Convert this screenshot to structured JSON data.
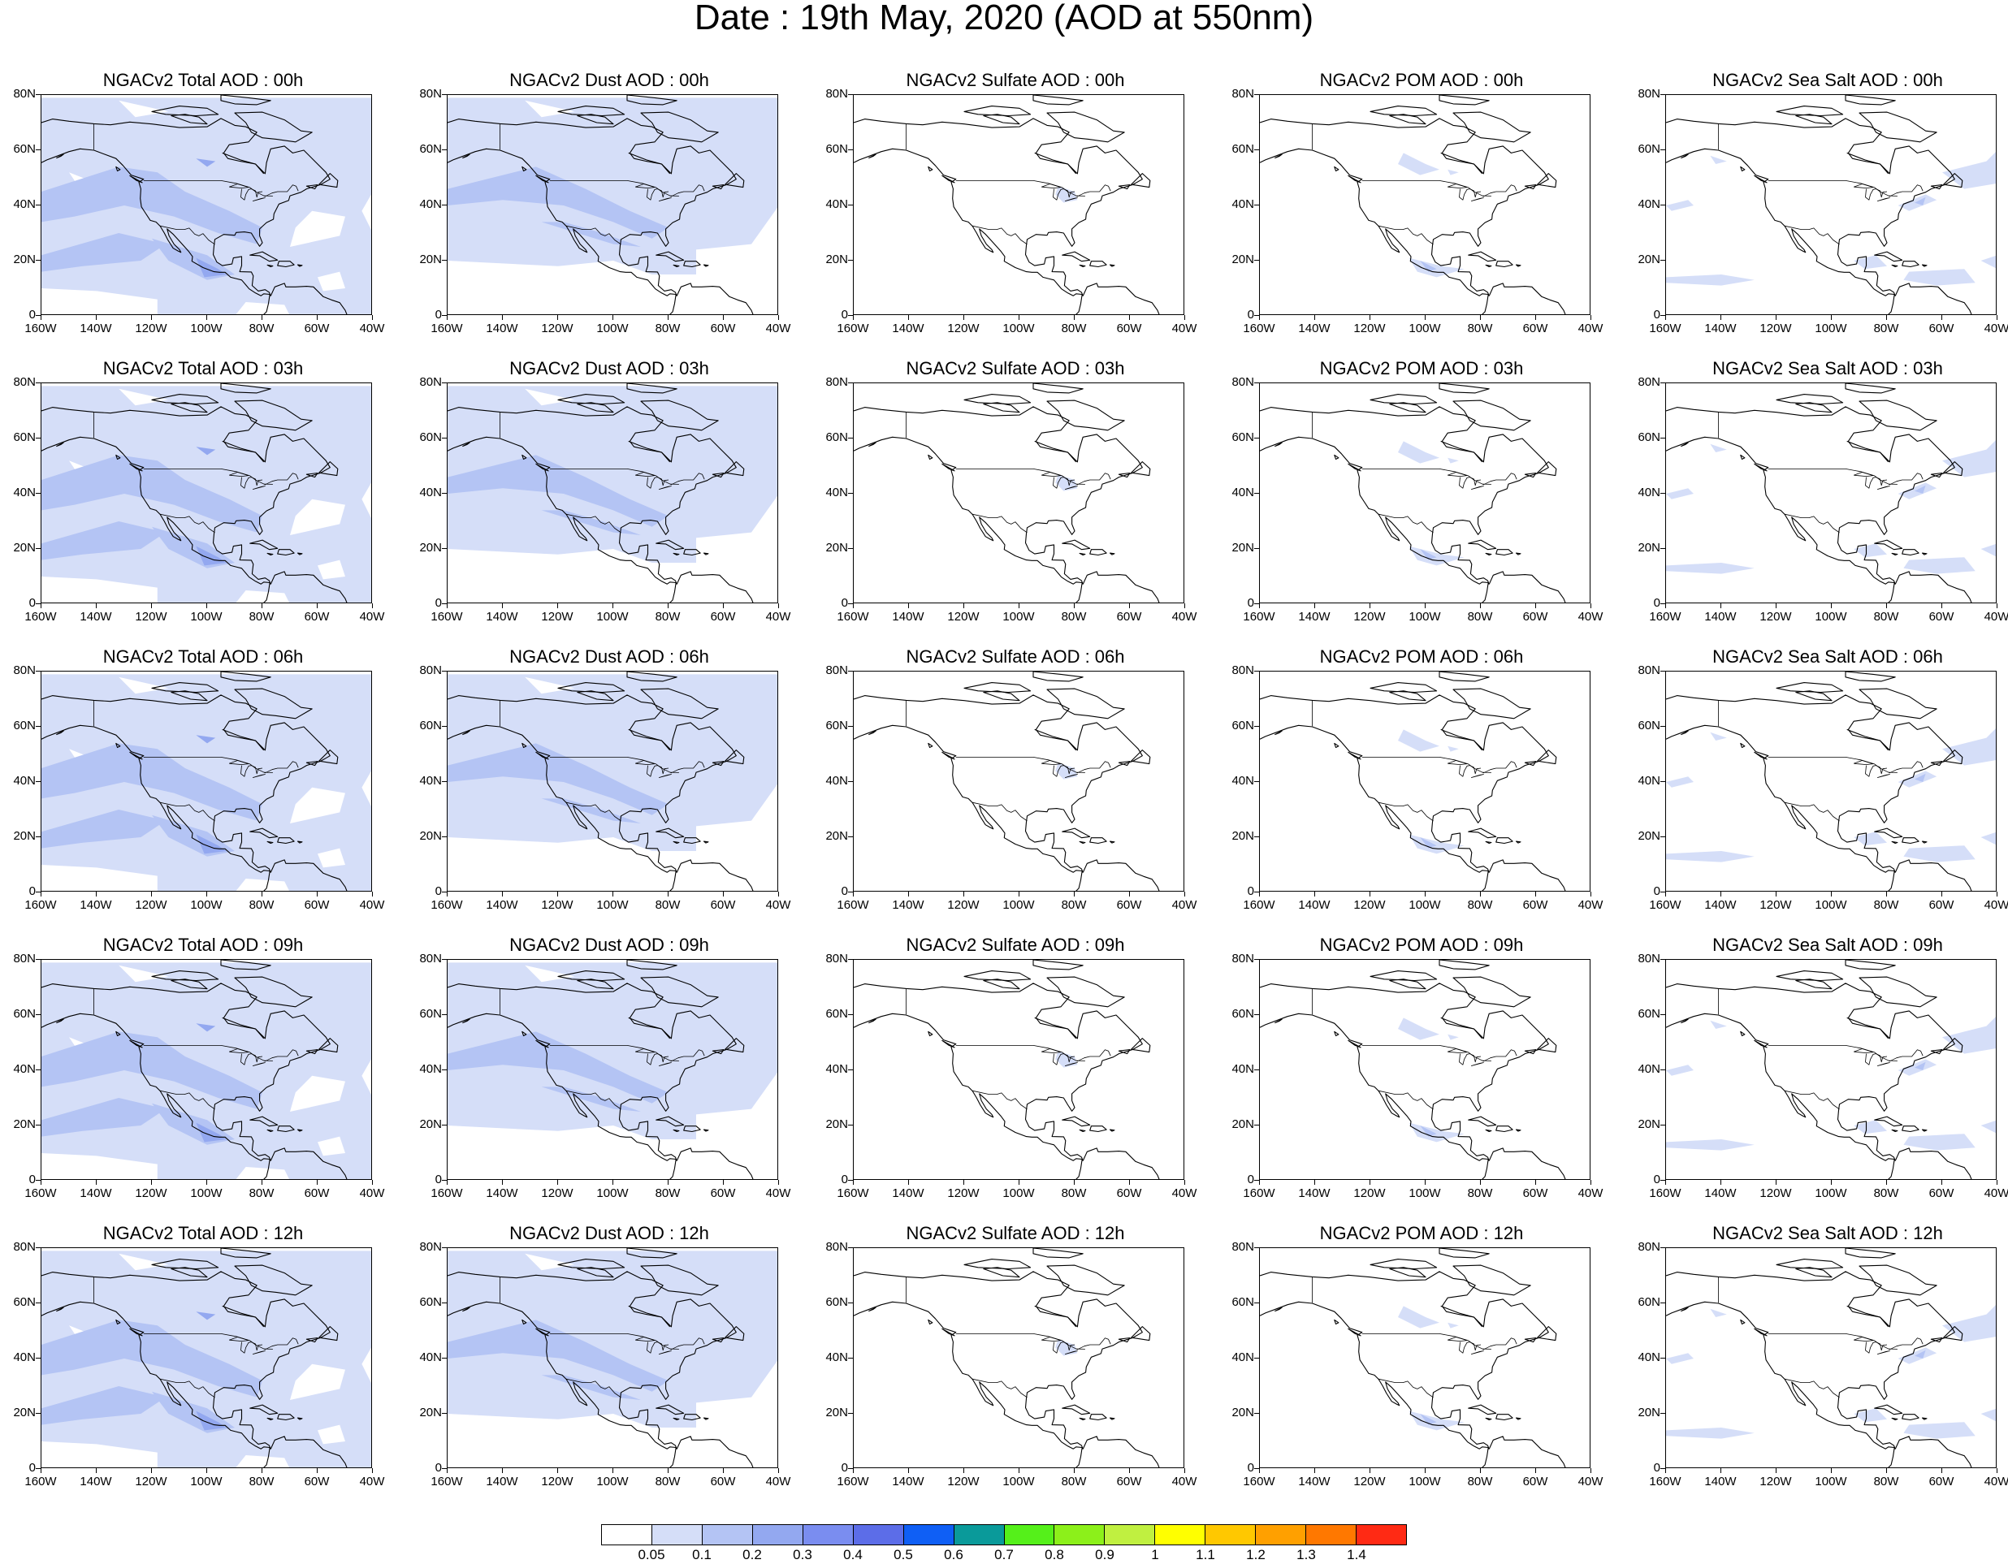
{
  "title": "Date : 19th May, 2020 (AOD at 550nm)",
  "panels": [
    [
      "NGACv2 Total AOD : 00h",
      "NGACv2 Dust AOD : 00h",
      "NGACv2 Sulfate AOD : 00h",
      "NGACv2 POM AOD : 00h",
      "NGACv2 Sea Salt AOD : 00h"
    ],
    [
      "NGACv2 Total AOD : 03h",
      "NGACv2 Dust AOD : 03h",
      "NGACv2 Sulfate AOD : 03h",
      "NGACv2 POM AOD : 03h",
      "NGACv2 Sea Salt AOD : 03h"
    ],
    [
      "NGACv2 Total AOD : 06h",
      "NGACv2 Dust AOD : 06h",
      "NGACv2 Sulfate AOD : 06h",
      "NGACv2 POM AOD : 06h",
      "NGACv2 Sea Salt AOD : 06h"
    ],
    [
      "NGACv2 Total AOD : 09h",
      "NGACv2 Dust AOD : 09h",
      "NGACv2 Sulfate AOD : 09h",
      "NGACv2 POM AOD : 09h",
      "NGACv2 Sea Salt  AOD : 09h"
    ],
    [
      "NGACv2 Total AOD  : 12h",
      "NGACv2 Dust AOD : 12h",
      "NGACv2 Sulfate AOD : 12h",
      "NGACv2 POM  AOD : 12h",
      "NGACv2 Sea Salt  AOD : 12h"
    ]
  ],
  "axes": {
    "lat_labels": [
      "80N",
      "60N",
      "40N",
      "20N",
      "0"
    ],
    "lon_labels": [
      "160W",
      "140W",
      "120W",
      "100W",
      "80W",
      "60W",
      "40W"
    ]
  },
  "colorbar": {
    "colors": [
      "#ffffff",
      "#d5def8",
      "#b4c4f4",
      "#93a8f0",
      "#7a8df0",
      "#5c6de8",
      "#0f5ff5",
      "#0a9a9a",
      "#55f01a",
      "#8cf01a",
      "#c0f040",
      "#ffff00",
      "#ffc800",
      "#ffa000",
      "#ff7800",
      "#ff2a14"
    ],
    "labels": [
      "0.05",
      "0.1",
      "0.2",
      "0.3",
      "0.4",
      "0.5",
      "0.6",
      "0.7",
      "0.8",
      "0.9",
      "1",
      "1.1",
      "1.2",
      "1.3",
      "1.4"
    ]
  },
  "fill_colors": {
    "low": "#d5def8",
    "mid": "#b4c4f4",
    "high": "#93a8f0",
    "peak": "#7a8df0"
  }
}
